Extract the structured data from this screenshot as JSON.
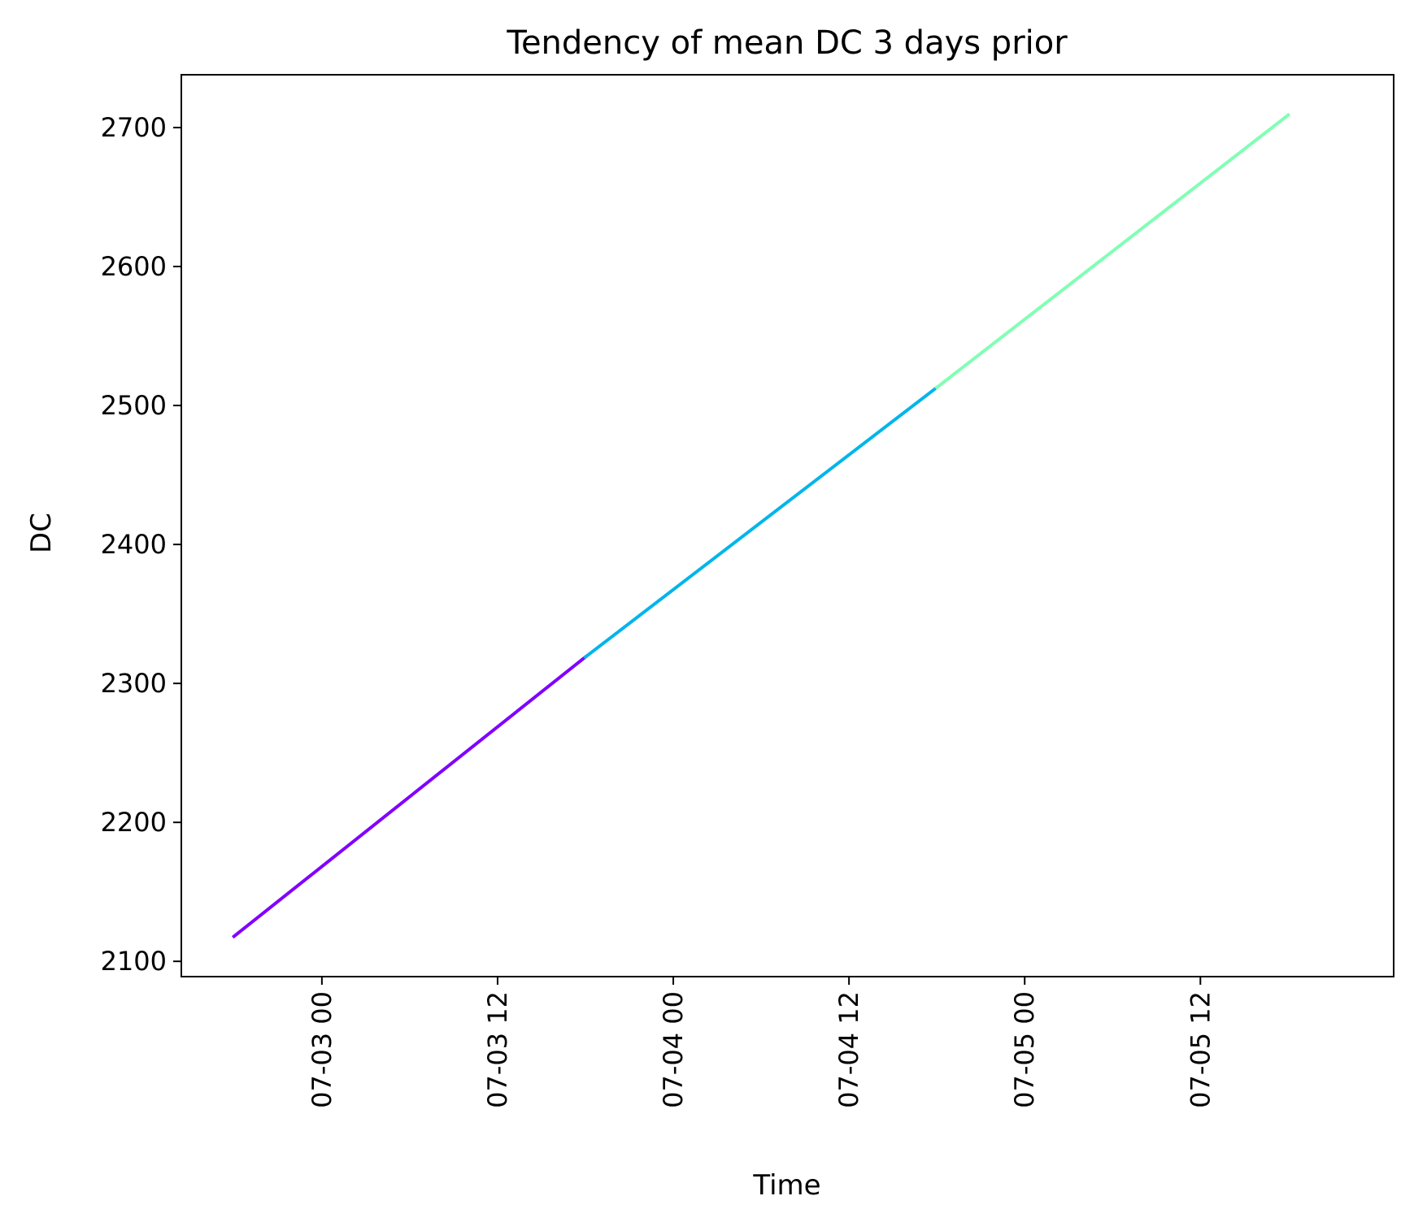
{
  "chart_data": {
    "type": "line",
    "title": "Tendency of mean DC 3 days prior",
    "xlabel": "Time",
    "ylabel": "DC",
    "x_ticks": [
      "07-03 00",
      "07-03 12",
      "07-04 00",
      "07-04 12",
      "07-05 00",
      "07-05 12"
    ],
    "y_ticks": [
      2100,
      2200,
      2300,
      2400,
      2500,
      2600,
      2700
    ],
    "ylim": [
      2089,
      2738
    ],
    "xlim": [
      "2023-07-02 14:24",
      "2023-07-06 01:12"
    ],
    "grid": false,
    "series": [
      {
        "color": "#8000ff",
        "x": [
          "2023-07-02 18:00",
          "2023-07-03 18:00"
        ],
        "y": [
          2118,
          2319
        ]
      },
      {
        "color": "#00b5eb",
        "x": [
          "2023-07-03 18:00",
          "2023-07-04 18:00"
        ],
        "y": [
          2319,
          2513
        ]
      },
      {
        "color": "#80ffb4",
        "x": [
          "2023-07-04 18:00",
          "2023-07-05 18:00"
        ],
        "y": [
          2513,
          2709
        ]
      }
    ]
  }
}
